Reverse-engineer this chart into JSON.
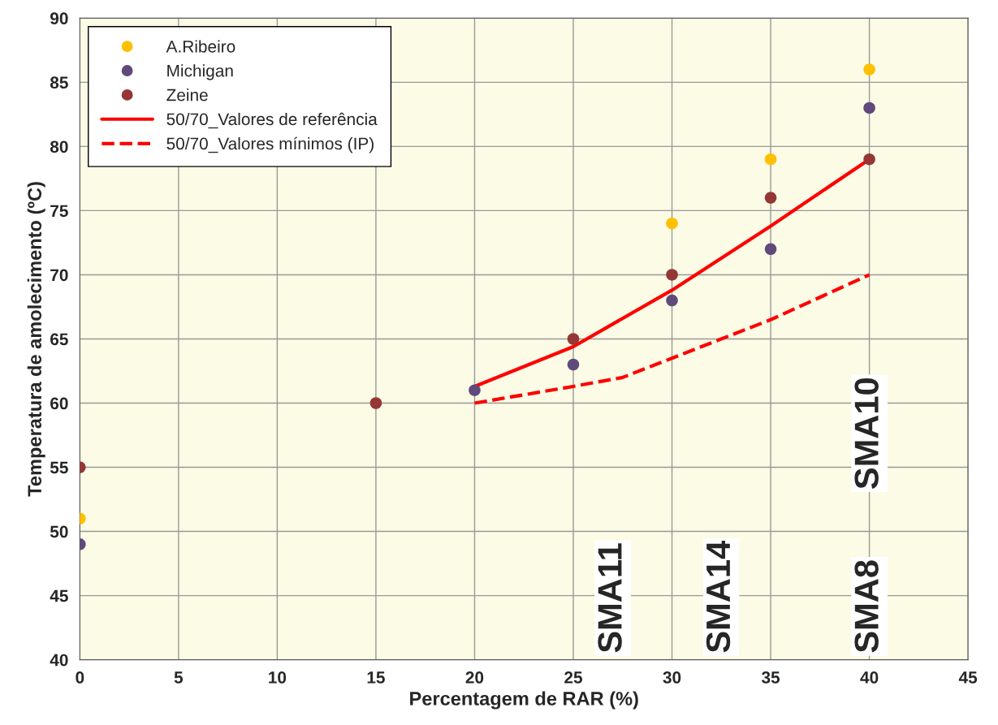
{
  "chart_data": {
    "type": "scatter",
    "xlabel": "Percentagem de RAR (%)",
    "ylabel": "Temperatura de amolecimento (ºC)",
    "xlim": [
      0,
      45
    ],
    "xticks": [
      0,
      5,
      10,
      15,
      20,
      25,
      30,
      35,
      40,
      45
    ],
    "ylim": [
      40,
      90
    ],
    "yticks": [
      40,
      45,
      50,
      55,
      60,
      65,
      70,
      75,
      80,
      85,
      90
    ],
    "grid": true,
    "legend": "top left",
    "marker": "circle",
    "series": [
      {
        "name": "A.Ribeiro",
        "color": "#ffc000",
        "x": [
          0,
          30,
          35,
          40
        ],
        "values": [
          51,
          74,
          79,
          86
        ]
      },
      {
        "name": "Michigan",
        "color": "#604a7b",
        "x": [
          0,
          20,
          25,
          30,
          35,
          40
        ],
        "values": [
          49,
          61,
          63,
          68,
          72,
          83
        ]
      },
      {
        "name": "Zeine",
        "color": "#953735",
        "x": [
          0,
          15,
          25,
          30,
          35,
          40
        ],
        "values": [
          55,
          60,
          65,
          70,
          76,
          79
        ]
      },
      {
        "name": "50/70_Valores de referência",
        "type": "line",
        "marker": "none",
        "line_style": "solid",
        "color": "#ff0000",
        "x": [
          20,
          25,
          30,
          35,
          40
        ],
        "values": [
          61.3,
          64.4,
          68.8,
          73.8,
          79
        ]
      },
      {
        "name": "50/70_Valores mínimos (IP)",
        "type": "line",
        "marker": "none",
        "line_style": "dashed",
        "color": "#ff0000",
        "x": [
          20,
          25,
          27.5,
          30,
          35,
          40
        ],
        "values": [
          60,
          61.3,
          62,
          63.5,
          66.5,
          70
        ]
      }
    ],
    "annotations": [
      "SMA11",
      "SMA14",
      "SMA8",
      "SMA10"
    ]
  }
}
